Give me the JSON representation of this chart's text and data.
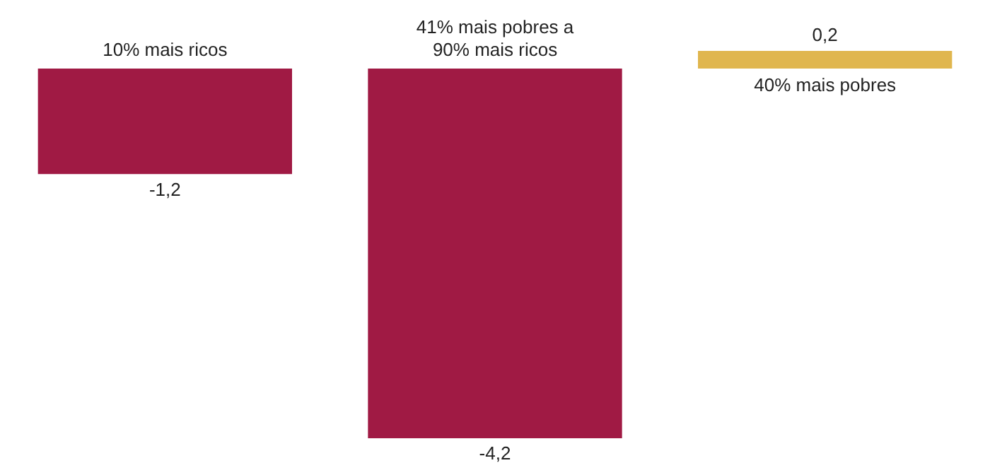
{
  "chart_data": {
    "type": "bar",
    "categories": [
      "10% mais ricos",
      "41% mais pobres a 90% mais ricos",
      "40% mais pobres"
    ],
    "values": [
      -1.2,
      -4.2,
      0.2
    ],
    "colors": [
      "#a01a44",
      "#a01a44",
      "#e0b64e"
    ],
    "value_labels": [
      "-1,2",
      "-4,2",
      "0,2"
    ],
    "legend": false
  }
}
